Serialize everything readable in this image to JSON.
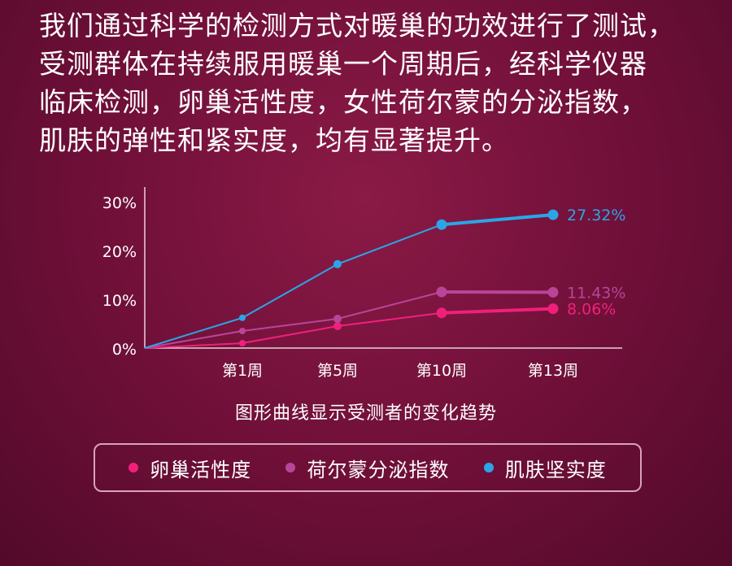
{
  "intro": {
    "lines": [
      "我们通过科学的检测方式对暖巢的功效进行了测试，",
      "受测群体在持续服用暖巢一个周期后，经科学仪器",
      "临床检测，卵巢活性度，女性荷尔蒙的分泌指数，",
      "肌肤的弹性和紧实度，均有显著提升。"
    ]
  },
  "chart_data": {
    "type": "line",
    "title": "图形曲线显示受测者的变化趋势",
    "x": [
      "",
      "第1周",
      "第5周",
      "第10周",
      "第13周"
    ],
    "ylim": [
      0,
      30
    ],
    "yticks": [
      "0%",
      "10%",
      "20%",
      "30%"
    ],
    "grid": false,
    "legend_position": "bottom",
    "series": [
      {
        "name": "卵巢活性度",
        "color": "#f0207a",
        "values": [
          0,
          1,
          4.5,
          7.2,
          8.06
        ],
        "end_label": "8.06%"
      },
      {
        "name": "荷尔蒙分泌指数",
        "color": "#b9459a",
        "values": [
          0,
          3.5,
          6,
          11.5,
          11.43
        ],
        "end_label": "11.43%"
      },
      {
        "name": "肌肤坚实度",
        "color": "#2aa6e6",
        "values": [
          0,
          6.2,
          17.2,
          25.3,
          27.32
        ],
        "end_label": "27.32%"
      }
    ]
  },
  "colors": {
    "background": "#6e0f38",
    "axis": "#e6d2dc"
  }
}
